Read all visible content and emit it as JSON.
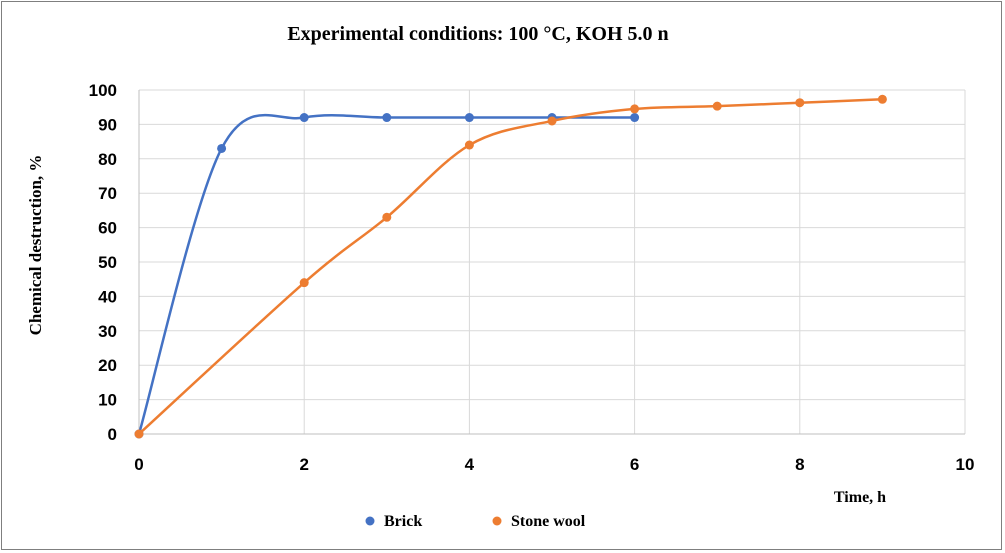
{
  "chart_data": {
    "type": "line",
    "title": "Experimental conditions: 100 °C, KOH 5.0 n",
    "xlabel": "Time, h",
    "ylabel": "Chemical destruction, %",
    "xlim": [
      0,
      10
    ],
    "ylim": [
      0,
      100
    ],
    "xticks": [
      0,
      2,
      4,
      6,
      8,
      10
    ],
    "yticks": [
      0,
      10,
      20,
      30,
      40,
      50,
      60,
      70,
      80,
      90,
      100
    ],
    "grid": true,
    "legend_position": "bottom",
    "series": [
      {
        "name": "Brick",
        "color": "#4472c4",
        "x": [
          0,
          1,
          2,
          3,
          4,
          5,
          6
        ],
        "y": [
          0,
          83,
          92,
          92,
          92,
          92,
          92
        ]
      },
      {
        "name": "Stone wool",
        "color": "#ed7d31",
        "x": [
          0,
          2,
          3,
          4,
          5,
          6,
          7,
          8,
          9
        ],
        "y": [
          0,
          44,
          63,
          84,
          91,
          94.5,
          95.3,
          96.3,
          97.3
        ]
      }
    ]
  }
}
